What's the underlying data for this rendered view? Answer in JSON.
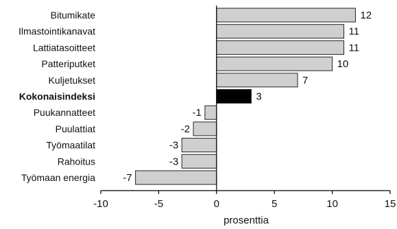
{
  "chart_data": {
    "type": "bar",
    "orientation": "horizontal",
    "title": "",
    "xlabel": "prosenttia",
    "ylabel": "",
    "xlim": [
      -10,
      15
    ],
    "xticks": [
      -10,
      -5,
      0,
      5,
      10,
      15
    ],
    "grid": false,
    "legend": "none",
    "categories": [
      "Bitumikate",
      "Ilmastointikanavat",
      "Lattiatasoitteet",
      "Patteriputket",
      "Kuljetukset",
      "Kokonaisindeksi",
      "Puukannatteet",
      "Puulattiat",
      "Työmaatilat",
      "Rahoitus",
      "Työmaan energia"
    ],
    "series": [
      {
        "values": [
          12,
          11,
          11,
          10,
          7,
          3,
          -1,
          -2,
          -3,
          -3,
          -7
        ]
      }
    ],
    "highlight_category": "Kokonaisindeksi",
    "colors": {
      "bar": "#cfcfcf",
      "highlight_bar": "#000000",
      "bar_outline": "#222222",
      "axis": "#000000"
    }
  }
}
